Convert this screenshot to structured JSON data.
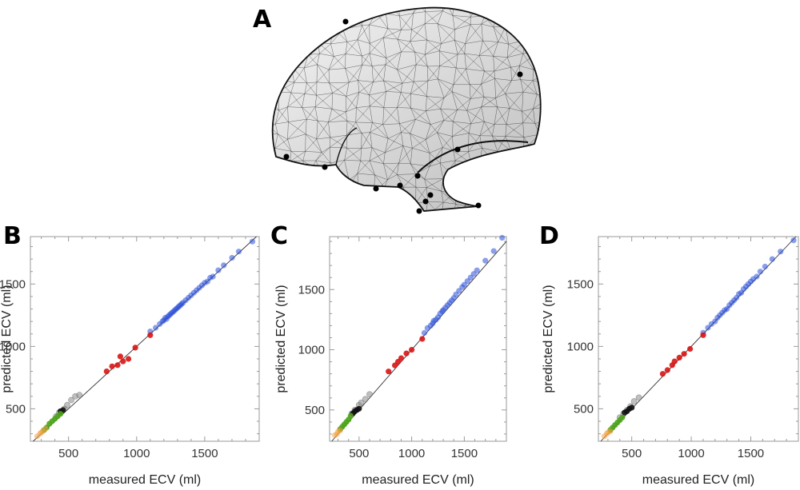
{
  "panels": {
    "a": "A",
    "b": "B",
    "c": "C",
    "d": "D"
  },
  "colors": {
    "modern": "#2a4fd8",
    "red": "#d81414",
    "gray": "#8a8a8a",
    "black": "#111111",
    "green": "#4ca31a",
    "orange": "#f2a040",
    "mesh_fill": "#d4d4d4"
  },
  "chart_data": [
    {
      "type": "scatter",
      "panel": "B",
      "xlabel": "measured ECV (ml)",
      "ylabel": "predicted ECV (ml)",
      "xlim": [
        220,
        1900
      ],
      "ylim": [
        240,
        1880
      ],
      "xticks": [
        500,
        1000,
        1500
      ],
      "yticks": [
        500,
        1000,
        1500
      ],
      "reference_line": "y = x",
      "series": [
        {
          "color_key": "modern",
          "points": [
            [
              1100,
              1120
            ],
            [
              1140,
              1150
            ],
            [
              1170,
              1180
            ],
            [
              1190,
              1200
            ],
            [
              1200,
              1210
            ],
            [
              1210,
              1230
            ],
            [
              1220,
              1220
            ],
            [
              1230,
              1240
            ],
            [
              1240,
              1250
            ],
            [
              1250,
              1260
            ],
            [
              1260,
              1270
            ],
            [
              1270,
              1280
            ],
            [
              1280,
              1290
            ],
            [
              1290,
              1300
            ],
            [
              1300,
              1310
            ],
            [
              1310,
              1320
            ],
            [
              1320,
              1330
            ],
            [
              1330,
              1340
            ],
            [
              1340,
              1350
            ],
            [
              1360,
              1370
            ],
            [
              1380,
              1390
            ],
            [
              1400,
              1410
            ],
            [
              1420,
              1430
            ],
            [
              1440,
              1450
            ],
            [
              1460,
              1470
            ],
            [
              1480,
              1490
            ],
            [
              1500,
              1510
            ],
            [
              1520,
              1520
            ],
            [
              1540,
              1550
            ],
            [
              1560,
              1560
            ],
            [
              1600,
              1610
            ],
            [
              1640,
              1650
            ],
            [
              1700,
              1710
            ],
            [
              1750,
              1760
            ],
            [
              1850,
              1840
            ]
          ]
        },
        {
          "color_key": "red",
          "points": [
            [
              780,
              800
            ],
            [
              820,
              840
            ],
            [
              860,
              850
            ],
            [
              880,
              920
            ],
            [
              900,
              880
            ],
            [
              940,
              900
            ],
            [
              990,
              990
            ],
            [
              1100,
              1090
            ]
          ]
        },
        {
          "color_key": "gray",
          "points": [
            [
              410,
              440
            ],
            [
              430,
              470
            ],
            [
              450,
              480
            ],
            [
              470,
              500
            ],
            [
              490,
              530
            ],
            [
              520,
              570
            ],
            [
              550,
              600
            ],
            [
              580,
              610
            ]
          ]
        },
        {
          "color_key": "black",
          "points": [
            [
              440,
              480
            ],
            [
              460,
              490
            ]
          ]
        },
        {
          "color_key": "green",
          "points": [
            [
              320,
              330
            ],
            [
              340,
              350
            ],
            [
              360,
              380
            ],
            [
              380,
              400
            ],
            [
              400,
              420
            ],
            [
              420,
              440
            ],
            [
              440,
              460
            ]
          ]
        },
        {
          "color_key": "orange",
          "points": [
            [
              270,
              280
            ],
            [
              290,
              300
            ],
            [
              300,
              310
            ],
            [
              310,
              320
            ],
            [
              330,
              340
            ]
          ]
        }
      ]
    },
    {
      "type": "scatter",
      "panel": "C",
      "xlabel": "measured ECV (ml)",
      "ylabel": "predicted ECV (ml)",
      "xlim": [
        220,
        1900
      ],
      "ylim": [
        240,
        1940
      ],
      "xticks": [
        500,
        1000,
        1500
      ],
      "yticks": [
        500,
        1000,
        1500
      ],
      "reference_line": "y = x",
      "series": [
        {
          "color_key": "modern",
          "points": [
            [
              1120,
              1140
            ],
            [
              1150,
              1180
            ],
            [
              1180,
              1200
            ],
            [
              1200,
              1220
            ],
            [
              1210,
              1240
            ],
            [
              1230,
              1250
            ],
            [
              1250,
              1270
            ],
            [
              1270,
              1300
            ],
            [
              1290,
              1320
            ],
            [
              1300,
              1330
            ],
            [
              1320,
              1350
            ],
            [
              1340,
              1370
            ],
            [
              1360,
              1390
            ],
            [
              1380,
              1410
            ],
            [
              1400,
              1430
            ],
            [
              1420,
              1460
            ],
            [
              1450,
              1490
            ],
            [
              1480,
              1520
            ],
            [
              1500,
              1540
            ],
            [
              1530,
              1570
            ],
            [
              1560,
              1600
            ],
            [
              1590,
              1630
            ],
            [
              1620,
              1660
            ],
            [
              1700,
              1740
            ],
            [
              1780,
              1820
            ],
            [
              1860,
              1930
            ]
          ]
        },
        {
          "color_key": "red",
          "points": [
            [
              780,
              820
            ],
            [
              840,
              870
            ],
            [
              870,
              900
            ],
            [
              900,
              930
            ],
            [
              950,
              970
            ],
            [
              1000,
              1000
            ],
            [
              1100,
              1090
            ]
          ]
        },
        {
          "color_key": "gray",
          "points": [
            [
              430,
              470
            ],
            [
              460,
              500
            ],
            [
              500,
              540
            ],
            [
              520,
              560
            ],
            [
              560,
              590
            ],
            [
              600,
              630
            ]
          ]
        },
        {
          "color_key": "black",
          "points": [
            [
              440,
              470
            ],
            [
              460,
              490
            ],
            [
              480,
              500
            ],
            [
              500,
              510
            ]
          ]
        },
        {
          "color_key": "green",
          "points": [
            [
              320,
              340
            ],
            [
              340,
              360
            ],
            [
              360,
              380
            ],
            [
              380,
              400
            ],
            [
              400,
              420
            ],
            [
              420,
              450
            ]
          ]
        },
        {
          "color_key": "orange",
          "points": [
            [
              270,
              290
            ],
            [
              290,
              300
            ],
            [
              300,
              320
            ],
            [
              320,
              330
            ]
          ]
        }
      ]
    },
    {
      "type": "scatter",
      "panel": "D",
      "xlabel": "measured ECV (ml)",
      "ylabel": "predicted ECV (ml)",
      "xlim": [
        220,
        1900
      ],
      "ylim": [
        240,
        1880
      ],
      "xticks": [
        500,
        1000,
        1500
      ],
      "yticks": [
        500,
        1000,
        1500
      ],
      "reference_line": "y = x",
      "series": [
        {
          "color_key": "modern",
          "points": [
            [
              1100,
              1110
            ],
            [
              1140,
              1150
            ],
            [
              1170,
              1180
            ],
            [
              1200,
              1200
            ],
            [
              1220,
              1230
            ],
            [
              1240,
              1250
            ],
            [
              1260,
              1270
            ],
            [
              1280,
              1290
            ],
            [
              1300,
              1300
            ],
            [
              1320,
              1330
            ],
            [
              1340,
              1350
            ],
            [
              1360,
              1370
            ],
            [
              1380,
              1390
            ],
            [
              1400,
              1420
            ],
            [
              1420,
              1430
            ],
            [
              1440,
              1460
            ],
            [
              1460,
              1480
            ],
            [
              1480,
              1500
            ],
            [
              1500,
              1520
            ],
            [
              1520,
              1540
            ],
            [
              1550,
              1560
            ],
            [
              1580,
              1600
            ],
            [
              1620,
              1640
            ],
            [
              1680,
              1700
            ],
            [
              1750,
              1760
            ],
            [
              1860,
              1850
            ]
          ]
        },
        {
          "color_key": "red",
          "points": [
            [
              760,
              780
            ],
            [
              800,
              810
            ],
            [
              840,
              850
            ],
            [
              860,
              880
            ],
            [
              900,
              910
            ],
            [
              940,
              940
            ],
            [
              990,
              980
            ],
            [
              1100,
              1090
            ]
          ]
        },
        {
          "color_key": "gray",
          "points": [
            [
              400,
              430
            ],
            [
              430,
              460
            ],
            [
              460,
              490
            ],
            [
              490,
              520
            ],
            [
              520,
              560
            ],
            [
              560,
              590
            ]
          ]
        },
        {
          "color_key": "black",
          "points": [
            [
              440,
              470
            ],
            [
              460,
              480
            ],
            [
              480,
              500
            ],
            [
              500,
              510
            ]
          ]
        },
        {
          "color_key": "green",
          "points": [
            [
              320,
              330
            ],
            [
              340,
              350
            ],
            [
              360,
              370
            ],
            [
              380,
              390
            ],
            [
              400,
              410
            ],
            [
              420,
              430
            ]
          ]
        },
        {
          "color_key": "orange",
          "points": [
            [
              270,
              280
            ],
            [
              290,
              300
            ],
            [
              300,
              310
            ],
            [
              320,
              320
            ]
          ]
        }
      ]
    }
  ]
}
